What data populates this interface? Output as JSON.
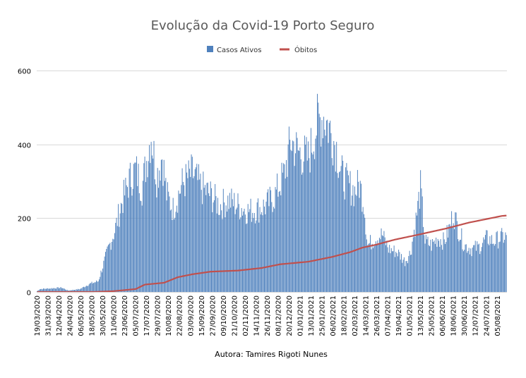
{
  "colors": {
    "bars": "#4f81bd",
    "line": "#c0504d",
    "grid": "#d9d9d9",
    "text": "#595959"
  },
  "chart_data": {
    "type": "bar",
    "title": "Evolução da Covid-19 Porto Seguro",
    "credit": "Autora: Tamires Rigoti Nunes",
    "legend": {
      "position": "top",
      "entries": [
        "Casos Ativos",
        "Óbitos"
      ]
    },
    "ylim": [
      0,
      600
    ],
    "yticks": [
      "0",
      "200",
      "400",
      "600"
    ],
    "ytick_values": [
      0,
      200,
      400,
      600
    ],
    "grid": true,
    "x_start_date": "2020-03-19",
    "x_end_date": "2021-08-15",
    "x_tick_labels": [
      "19/03/2020",
      "31/03/2020",
      "12/04/2020",
      "24/04/2020",
      "06/05/2020",
      "18/05/2020",
      "30/05/2020",
      "11/06/2020",
      "23/06/2020",
      "05/07/2020",
      "17/07/2020",
      "29/07/2020",
      "10/08/2020",
      "22/08/2020",
      "03/09/2020",
      "15/09/2020",
      "27/09/2020",
      "09/10/2020",
      "21/10/2020",
      "02/11/2020",
      "14/11/2020",
      "26/11/2020",
      "08/12/2020",
      "20/12/2020",
      "01/01/2021",
      "13/01/2021",
      "25/01/2021",
      "06/02/2021",
      "18/02/2021",
      "02/03/2021",
      "14/03/2021",
      "26/03/2021",
      "07/04/2021",
      "19/04/2021",
      "01/05/2021",
      "13/05/2021",
      "25/05/2021",
      "06/06/2021",
      "18/06/2021",
      "30/06/2021",
      "12/07/2021",
      "24/07/2021",
      "05/08/2021"
    ],
    "series": [
      {
        "name": "Casos Ativos",
        "kind": "bar",
        "keypoints": [
          [
            "2020-03-19",
            2
          ],
          [
            "2020-03-22",
            8
          ],
          [
            "2020-04-15",
            12
          ],
          [
            "2020-04-22",
            4
          ],
          [
            "2020-05-05",
            8
          ],
          [
            "2020-05-15",
            22
          ],
          [
            "2020-05-25",
            30
          ],
          [
            "2020-06-05",
            120
          ],
          [
            "2020-06-12",
            170
          ],
          [
            "2020-06-20",
            250
          ],
          [
            "2020-06-28",
            310
          ],
          [
            "2020-07-05",
            340
          ],
          [
            "2020-07-12",
            290
          ],
          [
            "2020-07-18",
            380
          ],
          [
            "2020-07-22",
            440
          ],
          [
            "2020-07-28",
            320
          ],
          [
            "2020-08-03",
            380
          ],
          [
            "2020-08-08",
            270
          ],
          [
            "2020-08-15",
            230
          ],
          [
            "2020-08-25",
            300
          ],
          [
            "2020-09-05",
            330
          ],
          [
            "2020-09-15",
            290
          ],
          [
            "2020-09-25",
            270
          ],
          [
            "2020-10-05",
            240
          ],
          [
            "2020-10-15",
            255
          ],
          [
            "2020-10-25",
            240
          ],
          [
            "2020-11-05",
            225
          ],
          [
            "2020-11-15",
            230
          ],
          [
            "2020-11-25",
            240
          ],
          [
            "2020-12-05",
            270
          ],
          [
            "2020-12-15",
            330
          ],
          [
            "2020-12-22",
            420
          ],
          [
            "2020-12-30",
            390
          ],
          [
            "2021-01-10",
            370
          ],
          [
            "2021-01-20",
            470
          ],
          [
            "2021-01-27",
            490
          ],
          [
            "2021-02-03",
            450
          ],
          [
            "2021-02-10",
            400
          ],
          [
            "2021-02-15",
            330
          ],
          [
            "2021-02-22",
            300
          ],
          [
            "2021-03-02",
            280
          ],
          [
            "2021-03-07",
            300
          ],
          [
            "2021-03-12",
            250
          ],
          [
            "2021-03-16",
            130
          ],
          [
            "2021-03-25",
            150
          ],
          [
            "2021-04-01",
            160
          ],
          [
            "2021-04-08",
            120
          ],
          [
            "2021-04-18",
            110
          ],
          [
            "2021-04-26",
            85
          ],
          [
            "2021-05-02",
            110
          ],
          [
            "2021-05-08",
            200
          ],
          [
            "2021-05-13",
            290
          ],
          [
            "2021-05-18",
            140
          ],
          [
            "2021-05-25",
            130
          ],
          [
            "2021-06-01",
            150
          ],
          [
            "2021-06-08",
            140
          ],
          [
            "2021-06-14",
            180
          ],
          [
            "2021-06-18",
            220
          ],
          [
            "2021-06-24",
            170
          ],
          [
            "2021-06-30",
            130
          ],
          [
            "2021-07-08",
            120
          ],
          [
            "2021-07-16",
            125
          ],
          [
            "2021-07-25",
            150
          ],
          [
            "2021-08-01",
            140
          ],
          [
            "2021-08-08",
            150
          ],
          [
            "2021-08-15",
            155
          ]
        ]
      },
      {
        "name": "Óbitos",
        "kind": "line",
        "keypoints": [
          [
            "2020-03-19",
            0
          ],
          [
            "2020-05-20",
            0
          ],
          [
            "2020-06-10",
            2
          ],
          [
            "2020-07-05",
            8
          ],
          [
            "2020-07-15",
            20
          ],
          [
            "2020-08-05",
            25
          ],
          [
            "2020-08-20",
            40
          ],
          [
            "2020-09-05",
            48
          ],
          [
            "2020-09-25",
            55
          ],
          [
            "2020-10-25",
            58
          ],
          [
            "2020-11-20",
            65
          ],
          [
            "2020-12-10",
            75
          ],
          [
            "2021-01-10",
            82
          ],
          [
            "2021-02-05",
            95
          ],
          [
            "2021-02-25",
            108
          ],
          [
            "2021-03-10",
            120
          ],
          [
            "2021-03-25",
            128
          ],
          [
            "2021-04-15",
            142
          ],
          [
            "2021-05-10",
            155
          ],
          [
            "2021-06-10",
            172
          ],
          [
            "2021-07-05",
            188
          ],
          [
            "2021-07-25",
            198
          ],
          [
            "2021-08-10",
            206
          ],
          [
            "2021-08-15",
            207
          ]
        ]
      }
    ]
  }
}
